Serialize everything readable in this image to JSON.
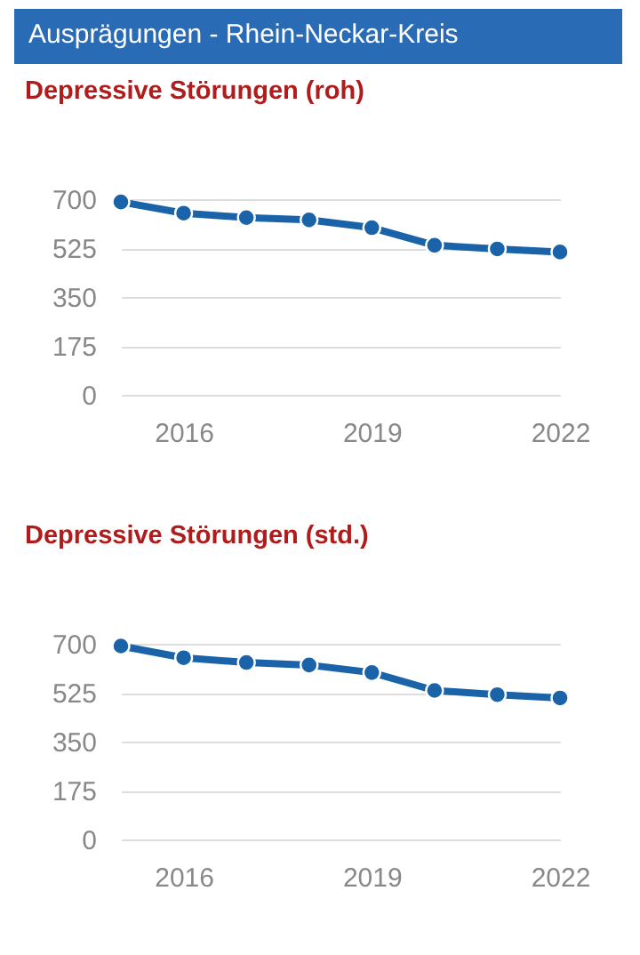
{
  "chart_data": [
    {
      "type": "line",
      "title": "Depressive Störungen (roh)",
      "annotations": [
        "Ausprägungen - Rhein-Neckar-Kreis"
      ],
      "x": [
        2015,
        2016,
        2017,
        2018,
        2019,
        2020,
        2021,
        2022
      ],
      "series": [
        {
          "color": "#1a63a8",
          "values": [
            690,
            650,
            634,
            626,
            598,
            535,
            522,
            511
          ]
        }
      ],
      "xlim": [
        2015,
        2022
      ],
      "xticks": [
        2016,
        2019,
        2022
      ],
      "ylim": [
        0,
        700
      ],
      "yticks": [
        0,
        175,
        350,
        525,
        700
      ],
      "grid": "y",
      "marker": "circle"
    },
    {
      "type": "line",
      "title": "Depressive Störungen (std.)",
      "x": [
        2015,
        2016,
        2017,
        2018,
        2019,
        2020,
        2021,
        2022
      ],
      "series": [
        {
          "color": "#1a63a8",
          "values": [
            692,
            650,
            633,
            624,
            597,
            533,
            518,
            506
          ]
        }
      ],
      "xlim": [
        2015,
        2022
      ],
      "xticks": [
        2016,
        2019,
        2022
      ],
      "ylim": [
        0,
        700
      ],
      "yticks": [
        0,
        175,
        350,
        525,
        700
      ],
      "grid": "y",
      "marker": "circle"
    }
  ]
}
